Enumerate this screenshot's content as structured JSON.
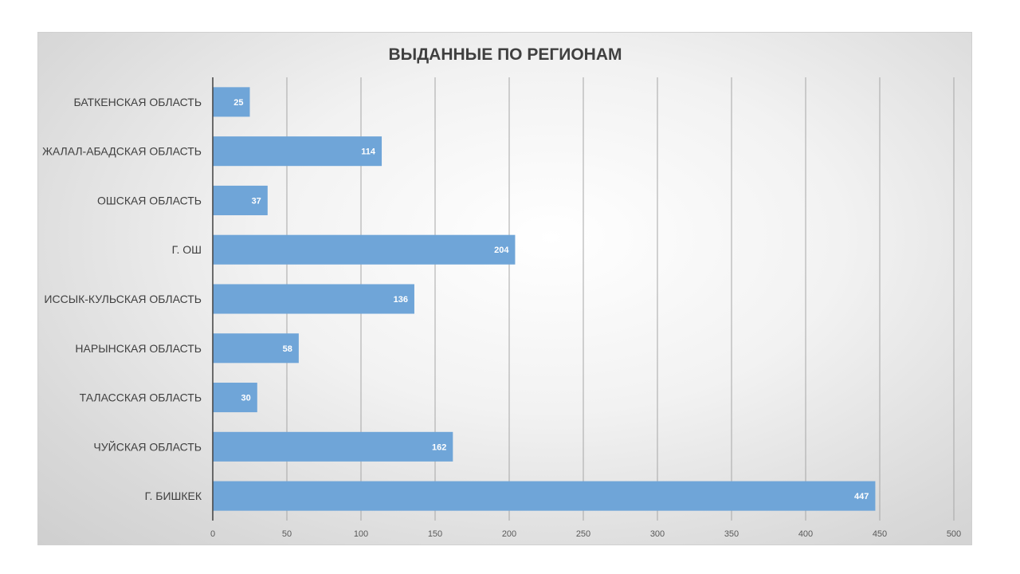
{
  "chart_data": {
    "type": "bar",
    "orientation": "horizontal",
    "title": "ВЫДАННЫЕ ПО РЕГИОНАМ",
    "categories": [
      "БАТКЕНСКАЯ ОБЛАСТЬ",
      "ЖАЛАЛ-АБАДСКАЯ ОБЛАСТЬ",
      "ОШСКАЯ ОБЛАСТЬ",
      "Г. ОШ",
      "ИССЫК-КУЛЬСКАЯ ОБЛАСТЬ",
      "НАРЫНСКАЯ ОБЛАСТЬ",
      "ТАЛАССКАЯ ОБЛАСТЬ",
      "ЧУЙСКАЯ ОБЛАСТЬ",
      "Г. БИШКЕК"
    ],
    "values": [
      25,
      114,
      37,
      204,
      136,
      58,
      30,
      162,
      447
    ],
    "xlim": [
      0,
      500
    ],
    "xticks": [
      0,
      50,
      100,
      150,
      200,
      250,
      300,
      350,
      400,
      450,
      500
    ],
    "grid": true,
    "legend": "none",
    "bar_color": "#6fa5d8",
    "data_label_color": "#ffffff"
  }
}
